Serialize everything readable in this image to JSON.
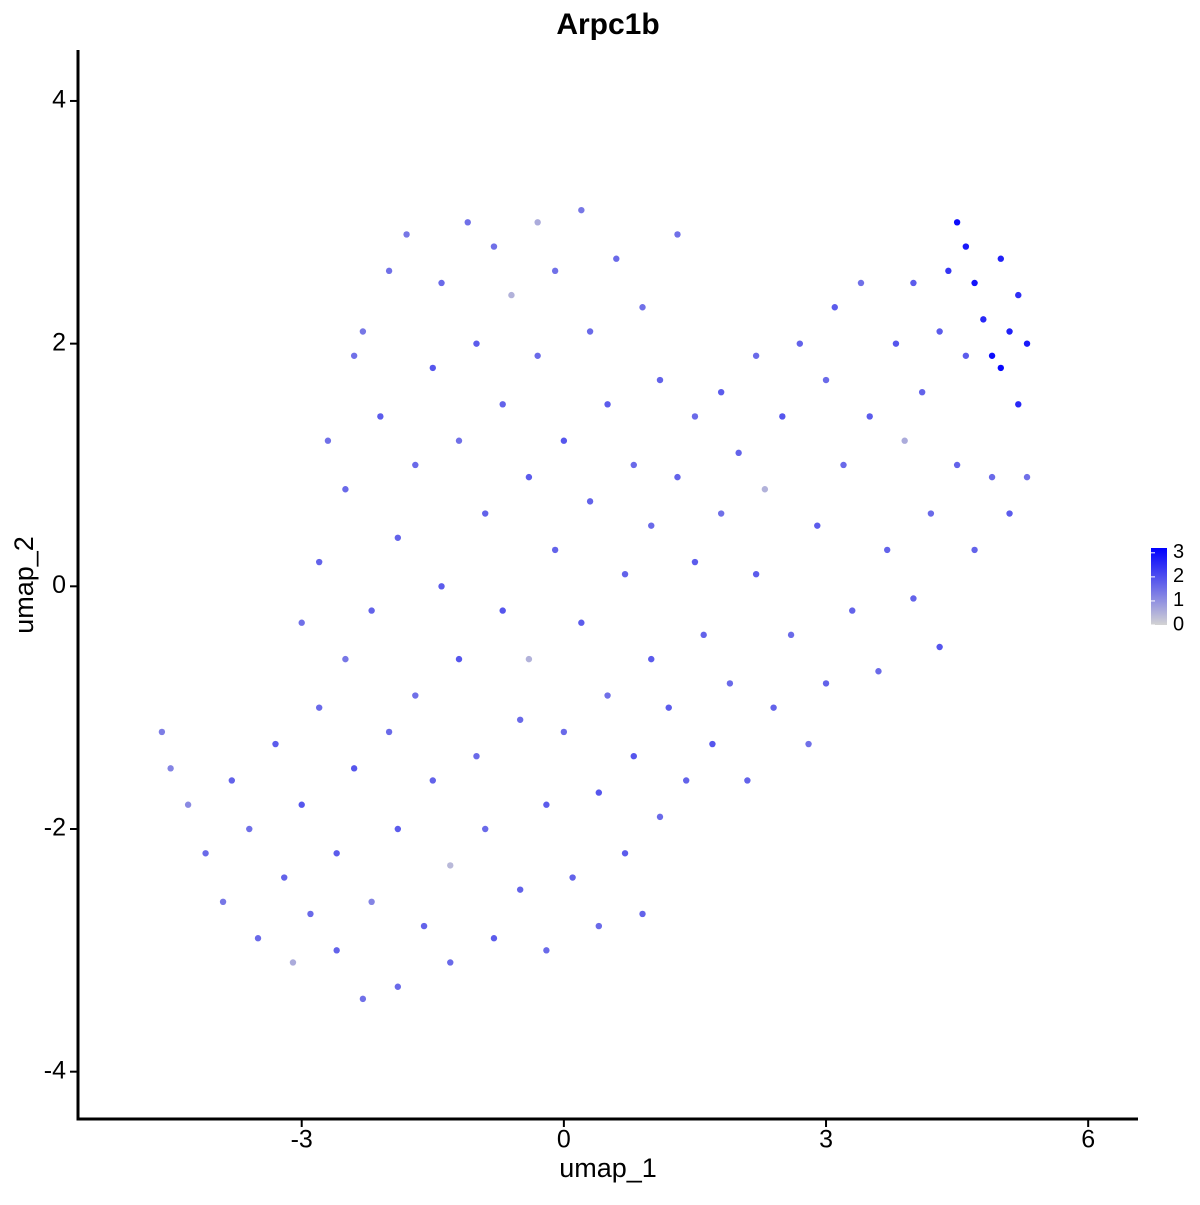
{
  "chart_data": {
    "type": "scatter",
    "title": "Arpc1b",
    "x_label": "umap_1",
    "y_label": "umap_2",
    "xlim": [
      -5.56,
      6.57
    ],
    "ylim": [
      -4.39,
      4.42
    ],
    "xticks": [
      -3,
      0,
      3,
      6
    ],
    "yticks": [
      -4,
      -2,
      0,
      2,
      4
    ],
    "color_low": "#d3d3d3",
    "color_high": "#0000ff",
    "colorlim": [
      0,
      3.2
    ],
    "color_ticks": [
      0,
      1,
      2,
      3
    ],
    "x": [
      -4.6,
      -4.5,
      -4.3,
      -4.1,
      -3.9,
      -3.8,
      -3.6,
      -3.5,
      -3.3,
      -3.2,
      -3.1,
      -3.0,
      -3.0,
      -2.9,
      -2.8,
      -2.8,
      -2.7,
      -2.6,
      -2.6,
      -2.5,
      -2.5,
      -2.4,
      -2.4,
      -2.3,
      -2.3,
      -2.2,
      -2.2,
      -2.1,
      -2.0,
      -2.0,
      -1.9,
      -1.9,
      -1.9,
      -1.8,
      -1.7,
      -1.7,
      -1.6,
      -1.5,
      -1.5,
      -1.4,
      -1.4,
      -1.3,
      -1.3,
      -1.2,
      -1.2,
      -1.1,
      -1.0,
      -1.0,
      -0.9,
      -0.9,
      -0.8,
      -0.8,
      -0.7,
      -0.7,
      -0.6,
      -0.5,
      -0.5,
      -0.4,
      -0.4,
      -0.3,
      -0.3,
      -0.2,
      -0.2,
      -0.1,
      -0.1,
      0.0,
      0.0,
      0.1,
      0.2,
      0.2,
      0.3,
      0.3,
      0.4,
      0.4,
      0.5,
      0.5,
      0.6,
      0.7,
      0.7,
      0.8,
      0.8,
      0.9,
      0.9,
      1.0,
      1.0,
      1.1,
      1.1,
      1.2,
      1.3,
      1.3,
      1.4,
      1.5,
      1.5,
      1.6,
      1.7,
      1.8,
      1.8,
      1.9,
      2.0,
      2.1,
      2.2,
      2.2,
      2.3,
      2.4,
      2.5,
      2.6,
      2.7,
      2.8,
      2.9,
      3.0,
      3.0,
      3.1,
      3.2,
      3.3,
      3.4,
      3.5,
      3.6,
      3.7,
      3.8,
      3.9,
      4.0,
      4.0,
      4.1,
      4.2,
      4.3,
      4.3,
      4.4,
      4.5,
      4.5,
      4.6,
      4.6,
      4.7,
      4.7,
      4.8,
      4.9,
      4.9,
      5.0,
      5.0,
      5.1,
      5.1,
      5.2,
      5.2,
      5.3,
      5.3
    ],
    "y": [
      -1.2,
      -1.5,
      -1.8,
      -2.2,
      -2.6,
      -1.6,
      -2.0,
      -2.9,
      -1.3,
      -2.4,
      -3.1,
      -0.3,
      -1.8,
      -2.7,
      0.2,
      -1.0,
      1.2,
      -2.2,
      -3.0,
      0.8,
      -0.6,
      1.9,
      -1.5,
      -3.4,
      2.1,
      -0.2,
      -2.6,
      1.4,
      -1.2,
      2.6,
      0.4,
      -2.0,
      -3.3,
      2.9,
      1.0,
      -0.9,
      -2.8,
      1.8,
      -1.6,
      0.0,
      2.5,
      -2.3,
      -3.1,
      1.2,
      -0.6,
      3.0,
      -1.4,
      2.0,
      0.6,
      -2.0,
      -2.9,
      2.8,
      -0.2,
      1.5,
      2.4,
      -1.1,
      -2.5,
      0.9,
      -0.6,
      3.0,
      1.9,
      -1.8,
      -3.0,
      0.3,
      2.6,
      1.2,
      -1.2,
      -2.4,
      3.1,
      -0.3,
      2.1,
      0.7,
      -1.7,
      -2.8,
      1.5,
      -0.9,
      2.7,
      0.1,
      -2.2,
      1.0,
      -1.4,
      2.3,
      -2.7,
      -0.6,
      0.5,
      1.7,
      -1.9,
      -1.0,
      0.9,
      2.9,
      -1.6,
      0.2,
      1.4,
      -0.4,
      -1.3,
      1.6,
      0.6,
      -0.8,
      1.1,
      -1.6,
      0.1,
      1.9,
      0.8,
      -1.0,
      1.4,
      -0.4,
      2.0,
      -1.3,
      0.5,
      1.7,
      -0.8,
      2.3,
      1.0,
      -0.2,
      2.5,
      1.4,
      -0.7,
      0.3,
      2.0,
      1.2,
      -0.1,
      2.5,
      1.6,
      0.6,
      -0.5,
      2.1,
      2.6,
      3.0,
      1.0,
      2.8,
      1.9,
      2.5,
      0.3,
      2.2,
      1.9,
      0.9,
      2.7,
      1.8,
      2.1,
      0.6,
      2.4,
      1.5,
      2.0,
      0.9
    ],
    "values": [
      1.3,
      1.2,
      1.1,
      1.6,
      1.4,
      1.7,
      1.5,
      1.6,
      1.8,
      1.7,
      0.6,
      1.5,
      1.9,
      1.6,
      1.7,
      1.6,
      1.5,
      1.8,
      1.7,
      1.6,
      1.4,
      1.5,
      1.9,
      1.5,
      1.4,
      1.7,
      1.2,
      1.8,
      1.6,
      1.5,
      1.7,
      1.8,
      1.6,
      1.4,
      1.6,
      1.5,
      1.7,
      1.9,
      1.7,
      1.8,
      1.6,
      0.4,
      1.6,
      1.5,
      1.9,
      1.5,
      1.6,
      1.8,
      1.7,
      1.6,
      1.8,
      1.5,
      1.9,
      1.7,
      0.5,
      1.6,
      1.7,
      1.8,
      0.5,
      0.6,
      1.6,
      1.8,
      1.6,
      1.7,
      1.5,
      1.9,
      1.6,
      1.7,
      1.4,
      1.8,
      1.6,
      1.7,
      1.9,
      1.6,
      1.8,
      1.5,
      1.6,
      1.7,
      1.8,
      1.6,
      1.9,
      1.5,
      1.7,
      1.8,
      1.6,
      1.7,
      1.6,
      1.8,
      1.7,
      1.5,
      1.7,
      1.8,
      1.6,
      1.7,
      1.9,
      1.8,
      1.5,
      1.6,
      1.7,
      1.7,
      1.8,
      1.6,
      0.5,
      1.7,
      1.9,
      1.6,
      1.7,
      1.5,
      1.8,
      1.6,
      1.7,
      1.8,
      1.6,
      1.7,
      1.5,
      1.8,
      1.6,
      1.7,
      1.9,
      0.6,
      1.7,
      1.8,
      1.7,
      1.6,
      1.9,
      1.8,
      2.4,
      3.0,
      1.7,
      2.8,
      1.8,
      2.9,
      1.7,
      2.6,
      3.0,
      1.6,
      2.7,
      3.1,
      2.7,
      1.8,
      2.5,
      2.6,
      2.8,
      1.5
    ]
  }
}
